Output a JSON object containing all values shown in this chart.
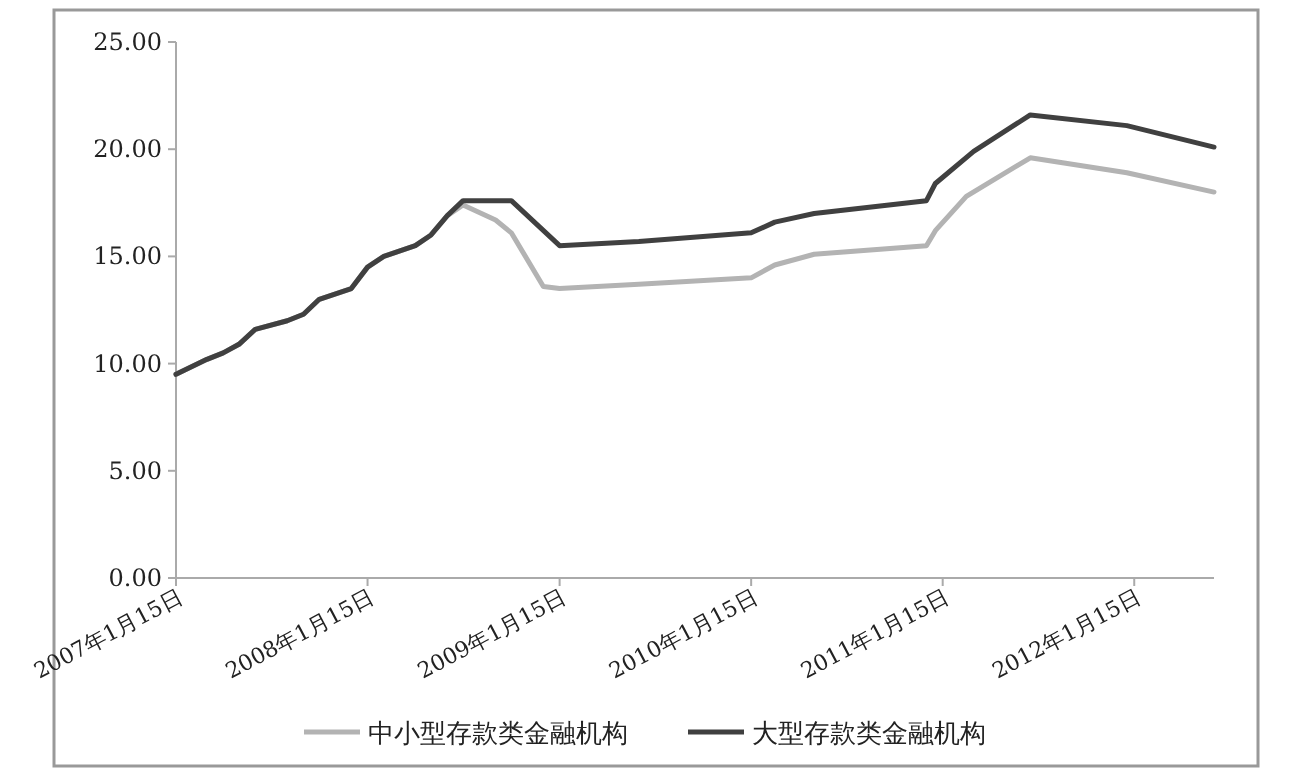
{
  "chart_data": {
    "type": "line",
    "xlim": [
      "2007-01-15",
      "2012-06-15"
    ],
    "xticks": [
      {
        "value": "2007-01-15",
        "label": "2007年1月15日"
      },
      {
        "value": "2008-01-15",
        "label": "2008年1月15日"
      },
      {
        "value": "2009-01-15",
        "label": "2009年1月15日"
      },
      {
        "value": "2010-01-15",
        "label": "2010年1月15日"
      },
      {
        "value": "2011-01-15",
        "label": "2011年1月15日"
      },
      {
        "value": "2012-01-15",
        "label": "2012年1月15日"
      }
    ],
    "ylim": [
      0,
      25
    ],
    "yticks": [
      {
        "value": 0,
        "label": "0.00"
      },
      {
        "value": 5,
        "label": "5.00"
      },
      {
        "value": 10,
        "label": "10.00"
      },
      {
        "value": 15,
        "label": "15.00"
      },
      {
        "value": 20,
        "label": "20.00"
      },
      {
        "value": 25,
        "label": "25.00"
      }
    ],
    "grid": false,
    "legend": "bottom",
    "marker": "none",
    "line_style": "solid",
    "series": [
      {
        "name": "中小型存款类金融机构",
        "color": "#b3b3b3",
        "x": [
          "2007-01-15",
          "2007-03-15",
          "2007-04-15",
          "2007-05-15",
          "2007-06-15",
          "2007-08-15",
          "2007-09-15",
          "2007-10-15",
          "2007-12-15",
          "2008-01-15",
          "2008-02-15",
          "2008-04-15",
          "2008-05-15",
          "2008-06-15",
          "2008-07-15",
          "2008-09-15",
          "2008-10-15",
          "2008-12-15",
          "2009-01-15",
          "2009-06-15",
          "2010-01-15",
          "2010-03-01",
          "2010-05-15",
          "2010-12-15",
          "2011-01-01",
          "2011-03-01",
          "2011-07-01",
          "2012-01-01",
          "2012-06-15"
        ],
        "values": [
          9.5,
          10.2,
          10.5,
          10.9,
          11.6,
          12.0,
          12.3,
          13.0,
          13.5,
          14.5,
          15.0,
          15.5,
          16.0,
          16.9,
          17.4,
          16.7,
          16.1,
          13.6,
          13.5,
          13.7,
          14.0,
          14.6,
          15.1,
          15.5,
          16.2,
          17.8,
          19.6,
          18.9,
          18.0
        ]
      },
      {
        "name": "大型存款类金融机构",
        "color": "#404040",
        "x": [
          "2007-01-15",
          "2007-03-15",
          "2007-04-15",
          "2007-05-15",
          "2007-06-15",
          "2007-08-15",
          "2007-09-15",
          "2007-10-15",
          "2007-12-15",
          "2008-01-15",
          "2008-02-15",
          "2008-04-15",
          "2008-05-15",
          "2008-06-15",
          "2008-07-15",
          "2008-10-15",
          "2009-01-15",
          "2009-06-15",
          "2010-01-15",
          "2010-03-01",
          "2010-05-15",
          "2010-12-15",
          "2011-01-01",
          "2011-03-15",
          "2011-07-01",
          "2012-01-01",
          "2012-06-15"
        ],
        "values": [
          9.5,
          10.2,
          10.5,
          10.9,
          11.6,
          12.0,
          12.3,
          13.0,
          13.5,
          14.5,
          15.0,
          15.5,
          16.0,
          16.9,
          17.6,
          17.6,
          15.5,
          15.7,
          16.1,
          16.6,
          17.0,
          17.6,
          18.4,
          19.9,
          21.6,
          21.1,
          20.1
        ]
      }
    ]
  }
}
